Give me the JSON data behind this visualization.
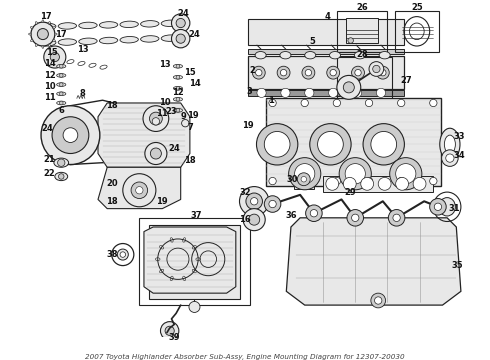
{
  "title": "2007 Toyota Highlander Absorber Sub-Assy, Engine Mounting Diagram for 12307-20030",
  "background_color": "#ffffff",
  "figsize": [
    4.9,
    3.6
  ],
  "dpi": 100,
  "label_fontsize": 6.0,
  "line_color": "#222222",
  "light_fill": "#e8e8e8",
  "mid_fill": "#cccccc",
  "dark_fill": "#aaaaaa"
}
